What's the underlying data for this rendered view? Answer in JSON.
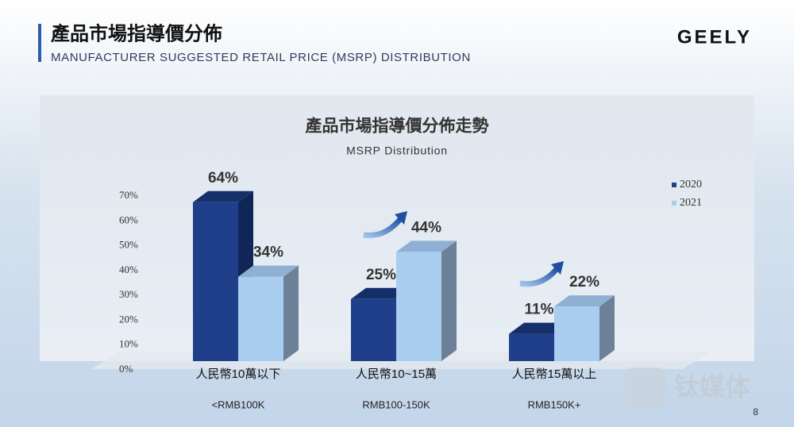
{
  "header": {
    "title": "產品市場指導價分佈",
    "subtitle": "MANUFACTURER SUGGESTED RETAIL PRICE (MSRP) DISTRIBUTION",
    "logo": "GEELY"
  },
  "chart_data": {
    "type": "bar",
    "title": "產品市場指導價分佈走勢",
    "subtitle": "MSRP Distribution",
    "categories": [
      "人民幣10萬以下",
      "人民幣10~15萬",
      "人民幣15萬以上"
    ],
    "category_sublabels": [
      "<RMB100K",
      "RMB100-150K",
      "RMB150K+"
    ],
    "series": [
      {
        "name": "2020",
        "color": "#1f3f8a",
        "values": [
          64,
          25,
          11
        ],
        "value_labels": [
          "64%",
          "25%",
          "11%"
        ]
      },
      {
        "name": "2021",
        "color": "#a8cdef",
        "values": [
          34,
          44,
          22
        ],
        "value_labels": [
          "34%",
          "44%",
          "22%"
        ]
      }
    ],
    "ylim": [
      0,
      70
    ],
    "yticks": [
      {
        "value": 0,
        "label": "0%"
      },
      {
        "value": 10,
        "label": "10%"
      },
      {
        "value": 20,
        "label": "20%"
      },
      {
        "value": 30,
        "label": "30%"
      },
      {
        "value": 40,
        "label": "40%"
      },
      {
        "value": 50,
        "label": "50%"
      },
      {
        "value": 60,
        "label": "60%"
      },
      {
        "value": 70,
        "label": "70%"
      }
    ],
    "legend": "right"
  },
  "page_number": "8",
  "watermark": "钛媒体"
}
